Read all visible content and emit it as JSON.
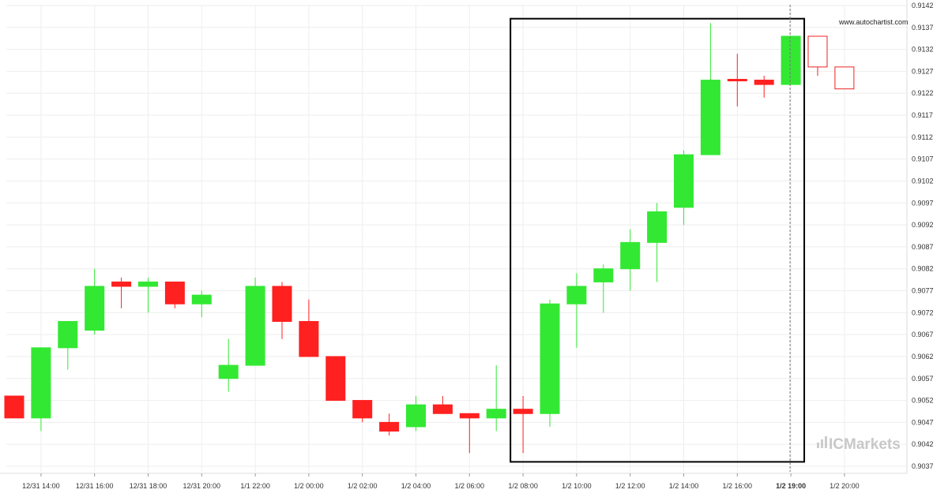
{
  "chart_data": {
    "type": "candlestick",
    "watermark_url": "www.autochartist.com",
    "brand": {
      "logo_icon": "bar-chart-icon",
      "name": "ICMarkets"
    },
    "colors": {
      "bull": "#33e833",
      "bear": "#ff2020",
      "outline_bear": "#ee2222",
      "box": "#000000",
      "grid": "#eeeeee",
      "vline": "#777777"
    },
    "ylim": [
      0.9035,
      0.9142
    ],
    "y_ticks": [
      "0.9142",
      "0.9137",
      "0.9132",
      "0.9127",
      "0.9122",
      "0.9117",
      "0.9112",
      "0.9107",
      "0.9102",
      "0.9097",
      "0.9092",
      "0.9087",
      "0.9082",
      "0.9077",
      "0.9072",
      "0.9067",
      "0.9062",
      "0.9057",
      "0.9052",
      "0.9047",
      "0.9042",
      "0.9037"
    ],
    "x_ticks": [
      {
        "label": "12/31 14:00",
        "index": 1,
        "bold": false
      },
      {
        "label": "12/31 16:00",
        "index": 3,
        "bold": false
      },
      {
        "label": "12/31 18:00",
        "index": 5,
        "bold": false
      },
      {
        "label": "12/31 20:00",
        "index": 7,
        "bold": false
      },
      {
        "label": "1/1 22:00",
        "index": 9,
        "bold": false
      },
      {
        "label": "1/2 00:00",
        "index": 11,
        "bold": false
      },
      {
        "label": "1/2 02:00",
        "index": 13,
        "bold": false
      },
      {
        "label": "1/2 04:00",
        "index": 15,
        "bold": false
      },
      {
        "label": "1/2 06:00",
        "index": 17,
        "bold": false
      },
      {
        "label": "1/2 08:00",
        "index": 19,
        "bold": false
      },
      {
        "label": "1/2 10:00",
        "index": 21,
        "bold": false
      },
      {
        "label": "1/2 12:00",
        "index": 23,
        "bold": false
      },
      {
        "label": "1/2 14:00",
        "index": 25,
        "bold": false
      },
      {
        "label": "1/2 16:00",
        "index": 27,
        "bold": false
      },
      {
        "label": "1/2 19:00",
        "index": 29,
        "bold": true
      },
      {
        "label": "1/2 20:00",
        "index": 31,
        "bold": false
      }
    ],
    "candles": [
      {
        "o": 0.9053,
        "h": 0.9053,
        "l": 0.9048,
        "c": 0.9048,
        "style": "bear"
      },
      {
        "o": 0.9048,
        "h": 0.9064,
        "l": 0.9045,
        "c": 0.9064,
        "style": "bull"
      },
      {
        "o": 0.9064,
        "h": 0.907,
        "l": 0.9059,
        "c": 0.907,
        "style": "bull"
      },
      {
        "o": 0.9068,
        "h": 0.9082,
        "l": 0.9067,
        "c": 0.9078,
        "style": "bull"
      },
      {
        "o": 0.9079,
        "h": 0.908,
        "l": 0.9073,
        "c": 0.9078,
        "style": "bear"
      },
      {
        "o": 0.9078,
        "h": 0.908,
        "l": 0.9072,
        "c": 0.9079,
        "style": "bull"
      },
      {
        "o": 0.9079,
        "h": 0.9079,
        "l": 0.9073,
        "c": 0.9074,
        "style": "bear"
      },
      {
        "o": 0.9074,
        "h": 0.9077,
        "l": 0.9071,
        "c": 0.9076,
        "style": "bull"
      },
      {
        "o": 0.9057,
        "h": 0.9066,
        "l": 0.9054,
        "c": 0.906,
        "style": "bull"
      },
      {
        "o": 0.906,
        "h": 0.908,
        "l": 0.906,
        "c": 0.9078,
        "style": "bull"
      },
      {
        "o": 0.9078,
        "h": 0.9079,
        "l": 0.9066,
        "c": 0.907,
        "style": "bear"
      },
      {
        "o": 0.907,
        "h": 0.9075,
        "l": 0.9062,
        "c": 0.9062,
        "style": "bear"
      },
      {
        "o": 0.9062,
        "h": 0.9062,
        "l": 0.9052,
        "c": 0.9052,
        "style": "bear"
      },
      {
        "o": 0.9052,
        "h": 0.9052,
        "l": 0.9047,
        "c": 0.9048,
        "style": "bear"
      },
      {
        "o": 0.9047,
        "h": 0.9049,
        "l": 0.9044,
        "c": 0.9045,
        "style": "bear"
      },
      {
        "o": 0.9046,
        "h": 0.9053,
        "l": 0.9045,
        "c": 0.9051,
        "style": "bull"
      },
      {
        "o": 0.9051,
        "h": 0.9053,
        "l": 0.9049,
        "c": 0.9049,
        "style": "bear"
      },
      {
        "o": 0.9049,
        "h": 0.9049,
        "l": 0.904,
        "c": 0.9048,
        "style": "bear"
      },
      {
        "o": 0.9048,
        "h": 0.906,
        "l": 0.9045,
        "c": 0.905,
        "style": "bull"
      },
      {
        "o": 0.905,
        "h": 0.9053,
        "l": 0.904,
        "c": 0.9049,
        "style": "bear"
      },
      {
        "o": 0.9049,
        "h": 0.9075,
        "l": 0.9046,
        "c": 0.9074,
        "style": "bull"
      },
      {
        "o": 0.9074,
        "h": 0.9081,
        "l": 0.9064,
        "c": 0.9078,
        "style": "bull"
      },
      {
        "o": 0.9079,
        "h": 0.9083,
        "l": 0.9072,
        "c": 0.9082,
        "style": "bull"
      },
      {
        "o": 0.9082,
        "h": 0.9091,
        "l": 0.9077,
        "c": 0.9088,
        "style": "bull"
      },
      {
        "o": 0.9088,
        "h": 0.9097,
        "l": 0.9079,
        "c": 0.9095,
        "style": "bull"
      },
      {
        "o": 0.9096,
        "h": 0.9109,
        "l": 0.9092,
        "c": 0.9108,
        "style": "bull"
      },
      {
        "o": 0.9108,
        "h": 0.9138,
        "l": 0.9108,
        "c": 0.9125,
        "style": "bull"
      },
      {
        "o": 0.9125,
        "h": 0.9131,
        "l": 0.9119,
        "c": 0.9125,
        "style": "bear"
      },
      {
        "o": 0.9124,
        "h": 0.9126,
        "l": 0.9121,
        "c": 0.9125,
        "style": "bear"
      },
      {
        "o": 0.9124,
        "h": 0.9135,
        "l": 0.9124,
        "c": 0.9135,
        "style": "bull"
      },
      {
        "o": 0.9128,
        "h": 0.9135,
        "l": 0.9126,
        "c": 0.9135,
        "style": "hollow"
      },
      {
        "o": 0.9123,
        "h": 0.9128,
        "l": 0.9123,
        "c": 0.9128,
        "style": "hollow"
      }
    ],
    "pattern_box": {
      "start_index": 19,
      "end_index": 29,
      "top": 0.9139,
      "bottom": 0.9038
    },
    "current_time_index": 29,
    "grid": true
  }
}
